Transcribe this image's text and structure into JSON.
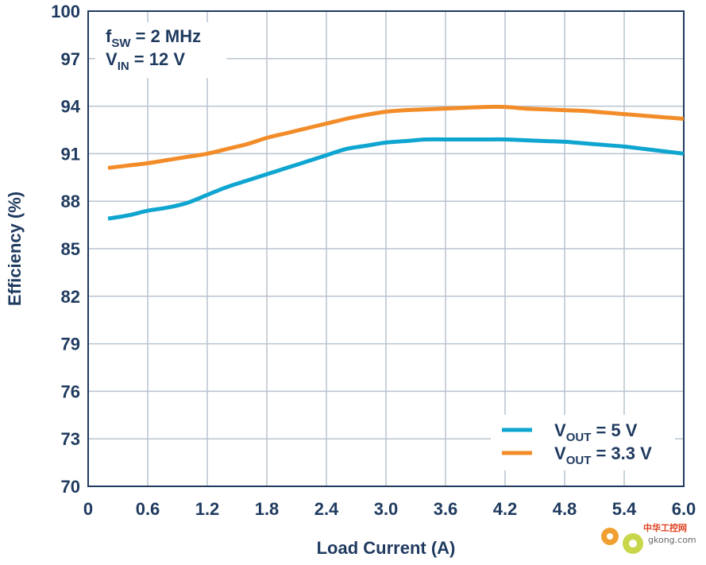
{
  "chart_data": {
    "type": "line",
    "title": "",
    "xlabel": "Load Current (A)",
    "ylabel": "Efficiency (%)",
    "xlim": [
      0,
      6.0
    ],
    "ylim": [
      70,
      100
    ],
    "x_ticks": [
      0,
      0.6,
      1.2,
      1.8,
      2.4,
      3.0,
      3.6,
      4.2,
      4.8,
      5.4,
      6.0
    ],
    "x_tick_labels": [
      "0",
      "0.6",
      "1.2",
      "1.8",
      "2.4",
      "3.0",
      "3.6",
      "4.2",
      "4.8",
      "5.4",
      "6.0"
    ],
    "y_ticks": [
      70,
      73,
      76,
      79,
      82,
      85,
      88,
      91,
      94,
      97,
      100
    ],
    "y_tick_labels": [
      "70",
      "73",
      "76",
      "79",
      "82",
      "85",
      "88",
      "91",
      "94",
      "97",
      "100"
    ],
    "grid": true,
    "legend_position": "bottom-right",
    "annotation": {
      "line1": {
        "main": "f",
        "sub": "SW",
        "rest": " = 2 MHz"
      },
      "line2": {
        "main": "V",
        "sub": "IN",
        "rest": " = 12 V"
      }
    },
    "series": [
      {
        "legend": {
          "main": "V",
          "sub": "OUT",
          "rest": " = 5 V"
        },
        "color": "#0ea5d0",
        "x": [
          0.2,
          0.4,
          0.6,
          0.8,
          1.0,
          1.2,
          1.4,
          1.6,
          1.8,
          2.0,
          2.2,
          2.4,
          2.6,
          2.8,
          3.0,
          3.2,
          3.4,
          3.6,
          3.8,
          4.0,
          4.2,
          4.4,
          4.6,
          4.8,
          5.0,
          5.2,
          5.4,
          5.6,
          5.8,
          6.0
        ],
        "values": [
          86.9,
          87.1,
          87.4,
          87.6,
          87.9,
          88.4,
          88.9,
          89.3,
          89.7,
          90.1,
          90.5,
          90.9,
          91.3,
          91.5,
          91.7,
          91.8,
          91.9,
          91.9,
          91.9,
          91.9,
          91.9,
          91.85,
          91.8,
          91.75,
          91.65,
          91.55,
          91.45,
          91.3,
          91.15,
          91.0
        ]
      },
      {
        "legend": {
          "main": "V",
          "sub": "OUT",
          "rest": " = 3.3 V"
        },
        "color": "#f28c28",
        "x": [
          0.2,
          0.4,
          0.6,
          0.8,
          1.0,
          1.2,
          1.4,
          1.6,
          1.8,
          2.0,
          2.2,
          2.4,
          2.6,
          2.8,
          3.0,
          3.2,
          3.4,
          3.6,
          3.8,
          4.0,
          4.2,
          4.4,
          4.6,
          4.8,
          5.0,
          5.2,
          5.4,
          5.6,
          5.8,
          6.0
        ],
        "values": [
          90.1,
          90.25,
          90.4,
          90.6,
          90.8,
          91.0,
          91.3,
          91.6,
          92.0,
          92.3,
          92.6,
          92.9,
          93.2,
          93.45,
          93.65,
          93.75,
          93.8,
          93.85,
          93.9,
          93.95,
          93.95,
          93.85,
          93.8,
          93.75,
          93.7,
          93.6,
          93.5,
          93.4,
          93.3,
          93.2
        ]
      }
    ]
  },
  "watermark": {
    "text_cn": "中华工控网",
    "text_url": "gkong.com"
  }
}
